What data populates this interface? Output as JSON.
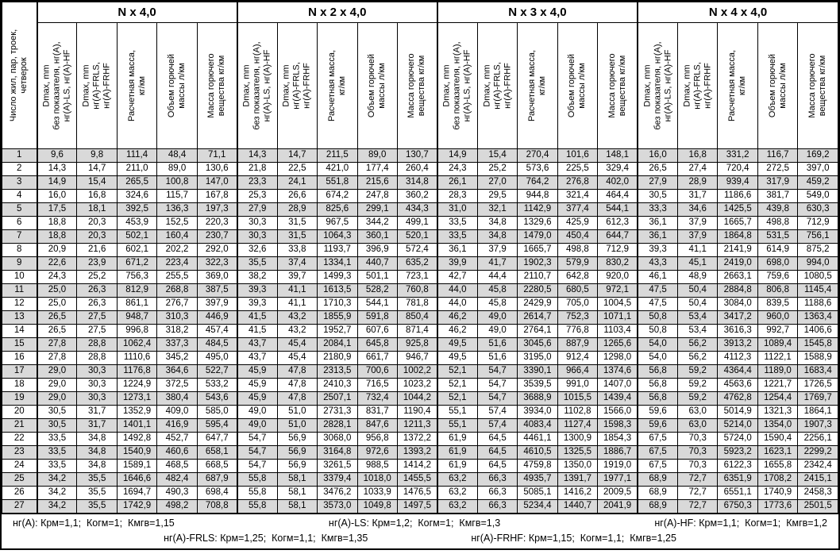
{
  "table": {
    "corner_header": "Число жил, пар, троек,\nчетверок",
    "groups": [
      {
        "title": "N x 4,0"
      },
      {
        "title": "N x 2 x 4,0"
      },
      {
        "title": "N x 3 x 4,0"
      },
      {
        "title": "N x 4 x 4,0"
      }
    ],
    "sub_headers": [
      "Dmax, mm\nбез показателя, нг(А),\nнг(А)-LS, нг(А)-HF",
      "Dmax, mm\nнг(А)-FRLS,\nнг(А)-FRHF",
      "Расчетная масса,\nкг/км",
      "Объем горючей\nмассы л/км",
      "Масса горючего\nвещества кг/км"
    ],
    "rows": [
      {
        "n": "1",
        "values": [
          "9,6",
          "9,8",
          "111,4",
          "48,4",
          "71,1",
          "14,3",
          "14,7",
          "211,5",
          "89,0",
          "130,7",
          "14,9",
          "15,4",
          "270,4",
          "101,6",
          "148,1",
          "16,0",
          "16,8",
          "331,2",
          "116,7",
          "169,2"
        ]
      },
      {
        "n": "2",
        "values": [
          "14,3",
          "14,7",
          "211,0",
          "89,0",
          "130,6",
          "21,8",
          "22,5",
          "421,0",
          "177,4",
          "260,4",
          "24,3",
          "25,2",
          "573,6",
          "225,5",
          "329,4",
          "26,5",
          "27,4",
          "720,4",
          "272,5",
          "397,0"
        ]
      },
      {
        "n": "3",
        "values": [
          "14,9",
          "15,4",
          "265,5",
          "100,8",
          "147,0",
          "23,3",
          "24,1",
          "551,8",
          "215,6",
          "314,8",
          "26,1",
          "27,0",
          "764,2",
          "276,8",
          "402,0",
          "27,9",
          "28,9",
          "939,4",
          "317,9",
          "459,2"
        ]
      },
      {
        "n": "4",
        "values": [
          "16,0",
          "16,8",
          "324,6",
          "115,7",
          "167,8",
          "25,3",
          "26,6",
          "674,2",
          "247,8",
          "360,2",
          "28,3",
          "29,5",
          "944,8",
          "321,4",
          "464,4",
          "30,5",
          "31,7",
          "1186,6",
          "381,7",
          "549,0"
        ]
      },
      {
        "n": "5",
        "values": [
          "17,5",
          "18,1",
          "392,5",
          "136,3",
          "197,3",
          "27,9",
          "28,9",
          "825,6",
          "299,1",
          "434,3",
          "31,0",
          "32,1",
          "1142,9",
          "377,4",
          "544,1",
          "33,3",
          "34,6",
          "1425,5",
          "439,8",
          "630,3"
        ]
      },
      {
        "n": "6",
        "values": [
          "18,8",
          "20,3",
          "453,9",
          "152,5",
          "220,3",
          "30,3",
          "31,5",
          "967,5",
          "344,2",
          "499,1",
          "33,5",
          "34,8",
          "1329,6",
          "425,9",
          "612,3",
          "36,1",
          "37,9",
          "1665,7",
          "498,8",
          "712,9"
        ]
      },
      {
        "n": "7",
        "values": [
          "18,8",
          "20,3",
          "502,1",
          "160,4",
          "230,7",
          "30,3",
          "31,5",
          "1064,3",
          "360,1",
          "520,1",
          "33,5",
          "34,8",
          "1479,0",
          "450,4",
          "644,7",
          "36,1",
          "37,9",
          "1864,8",
          "531,5",
          "756,1"
        ]
      },
      {
        "n": "8",
        "values": [
          "20,9",
          "21,6",
          "602,1",
          "202,2",
          "292,0",
          "32,6",
          "33,8",
          "1193,7",
          "396,9",
          "572,4",
          "36,1",
          "37,9",
          "1665,7",
          "498,8",
          "712,9",
          "39,3",
          "41,1",
          "2141,9",
          "614,9",
          "875,2"
        ]
      },
      {
        "n": "9",
        "values": [
          "22,6",
          "23,9",
          "671,2",
          "223,4",
          "322,3",
          "35,5",
          "37,4",
          "1334,1",
          "440,7",
          "635,2",
          "39,9",
          "41,7",
          "1902,3",
          "579,9",
          "830,2",
          "43,3",
          "45,1",
          "2419,0",
          "698,0",
          "994,0"
        ]
      },
      {
        "n": "10",
        "values": [
          "24,3",
          "25,2",
          "756,3",
          "255,5",
          "369,0",
          "38,2",
          "39,7",
          "1499,3",
          "501,1",
          "723,1",
          "42,7",
          "44,4",
          "2110,7",
          "642,8",
          "920,0",
          "46,1",
          "48,9",
          "2663,1",
          "759,6",
          "1080,5"
        ]
      },
      {
        "n": "11",
        "values": [
          "25,0",
          "26,3",
          "812,9",
          "268,8",
          "387,5",
          "39,3",
          "41,1",
          "1613,5",
          "528,2",
          "760,8",
          "44,0",
          "45,8",
          "2280,5",
          "680,5",
          "972,1",
          "47,5",
          "50,4",
          "2884,8",
          "806,8",
          "1145,4"
        ]
      },
      {
        "n": "12",
        "values": [
          "25,0",
          "26,3",
          "861,1",
          "276,7",
          "397,9",
          "39,3",
          "41,1",
          "1710,3",
          "544,1",
          "781,8",
          "44,0",
          "45,8",
          "2429,9",
          "705,0",
          "1004,5",
          "47,5",
          "50,4",
          "3084,0",
          "839,5",
          "1188,6"
        ]
      },
      {
        "n": "13",
        "values": [
          "26,5",
          "27,5",
          "948,7",
          "310,3",
          "446,9",
          "41,5",
          "43,2",
          "1855,9",
          "591,8",
          "850,4",
          "46,2",
          "49,0",
          "2614,7",
          "752,3",
          "1071,1",
          "50,8",
          "53,4",
          "3417,2",
          "960,0",
          "1363,4"
        ]
      },
      {
        "n": "14",
        "values": [
          "26,5",
          "27,5",
          "996,8",
          "318,2",
          "457,4",
          "41,5",
          "43,2",
          "1952,7",
          "607,6",
          "871,4",
          "46,2",
          "49,0",
          "2764,1",
          "776,8",
          "1103,4",
          "50,8",
          "53,4",
          "3616,3",
          "992,7",
          "1406,6"
        ]
      },
      {
        "n": "15",
        "values": [
          "27,8",
          "28,8",
          "1062,4",
          "337,3",
          "484,5",
          "43,7",
          "45,4",
          "2084,1",
          "645,8",
          "925,8",
          "49,5",
          "51,6",
          "3045,6",
          "887,9",
          "1265,6",
          "54,0",
          "56,2",
          "3913,2",
          "1089,4",
          "1545,8"
        ]
      },
      {
        "n": "16",
        "values": [
          "27,8",
          "28,8",
          "1110,6",
          "345,2",
          "495,0",
          "43,7",
          "45,4",
          "2180,9",
          "661,7",
          "946,7",
          "49,5",
          "51,6",
          "3195,0",
          "912,4",
          "1298,0",
          "54,0",
          "56,2",
          "4112,3",
          "1122,1",
          "1588,9"
        ]
      },
      {
        "n": "17",
        "values": [
          "29,0",
          "30,3",
          "1176,8",
          "364,6",
          "522,7",
          "45,9",
          "47,8",
          "2313,5",
          "700,6",
          "1002,2",
          "52,1",
          "54,7",
          "3390,1",
          "966,4",
          "1374,6",
          "56,8",
          "59,2",
          "4364,4",
          "1189,0",
          "1683,4"
        ]
      },
      {
        "n": "18",
        "values": [
          "29,0",
          "30,3",
          "1224,9",
          "372,5",
          "533,2",
          "45,9",
          "47,8",
          "2410,3",
          "716,5",
          "1023,2",
          "52,1",
          "54,7",
          "3539,5",
          "991,0",
          "1407,0",
          "56,8",
          "59,2",
          "4563,6",
          "1221,7",
          "1726,5"
        ]
      },
      {
        "n": "19",
        "values": [
          "29,0",
          "30,3",
          "1273,1",
          "380,4",
          "543,6",
          "45,9",
          "47,8",
          "2507,1",
          "732,4",
          "1044,2",
          "52,1",
          "54,7",
          "3688,9",
          "1015,5",
          "1439,4",
          "56,8",
          "59,2",
          "4762,8",
          "1254,4",
          "1769,7"
        ]
      },
      {
        "n": "20",
        "values": [
          "30,5",
          "31,7",
          "1352,9",
          "409,0",
          "585,0",
          "49,0",
          "51,0",
          "2731,3",
          "831,7",
          "1190,4",
          "55,1",
          "57,4",
          "3934,0",
          "1102,8",
          "1566,0",
          "59,6",
          "63,0",
          "5014,9",
          "1321,3",
          "1864,1"
        ]
      },
      {
        "n": "21",
        "values": [
          "30,5",
          "31,7",
          "1401,1",
          "416,9",
          "595,4",
          "49,0",
          "51,0",
          "2828,1",
          "847,6",
          "1211,3",
          "55,1",
          "57,4",
          "4083,4",
          "1127,4",
          "1598,3",
          "59,6",
          "63,0",
          "5214,0",
          "1354,0",
          "1907,3"
        ]
      },
      {
        "n": "22",
        "values": [
          "33,5",
          "34,8",
          "1492,8",
          "452,7",
          "647,7",
          "54,7",
          "56,9",
          "3068,0",
          "956,8",
          "1372,2",
          "61,9",
          "64,5",
          "4461,1",
          "1300,9",
          "1854,3",
          "67,5",
          "70,3",
          "5724,0",
          "1590,4",
          "2256,1"
        ]
      },
      {
        "n": "23",
        "values": [
          "33,5",
          "34,8",
          "1540,9",
          "460,6",
          "658,1",
          "54,7",
          "56,9",
          "3164,8",
          "972,6",
          "1393,2",
          "61,9",
          "64,5",
          "4610,5",
          "1325,5",
          "1886,7",
          "67,5",
          "70,3",
          "5923,2",
          "1623,1",
          "2299,2"
        ]
      },
      {
        "n": "24",
        "values": [
          "33,5",
          "34,8",
          "1589,1",
          "468,5",
          "668,5",
          "54,7",
          "56,9",
          "3261,5",
          "988,5",
          "1414,2",
          "61,9",
          "64,5",
          "4759,8",
          "1350,0",
          "1919,0",
          "67,5",
          "70,3",
          "6122,3",
          "1655,8",
          "2342,4"
        ]
      },
      {
        "n": "25",
        "values": [
          "34,2",
          "35,5",
          "1646,6",
          "482,4",
          "687,9",
          "55,8",
          "58,1",
          "3379,4",
          "1018,0",
          "1455,5",
          "63,2",
          "66,3",
          "4935,7",
          "1391,7",
          "1977,1",
          "68,9",
          "72,7",
          "6351,9",
          "1708,2",
          "2415,1"
        ]
      },
      {
        "n": "26",
        "values": [
          "34,2",
          "35,5",
          "1694,7",
          "490,3",
          "698,4",
          "55,8",
          "58,1",
          "3476,2",
          "1033,9",
          "1476,5",
          "63,2",
          "66,3",
          "5085,1",
          "1416,2",
          "2009,5",
          "68,9",
          "72,7",
          "6551,1",
          "1740,9",
          "2458,3"
        ]
      },
      {
        "n": "27",
        "values": [
          "34,2",
          "35,5",
          "1742,9",
          "498,2",
          "708,8",
          "55,8",
          "58,1",
          "3573,0",
          "1049,8",
          "1497,5",
          "63,2",
          "66,3",
          "5234,4",
          "1440,7",
          "2041,9",
          "68,9",
          "72,7",
          "6750,3",
          "1773,6",
          "2501,5"
        ]
      }
    ]
  },
  "footnotes": {
    "line1": [
      "нг(А): Крм=1,1;  Когм=1;  Кмгв=1,15",
      "нг(А)-LS: Крм=1,2;  Когм=1;  Кмгв=1,3",
      "нг(А)-HF: Крм=1,1;  Когм=1;  Кмгв=1,2"
    ],
    "line2": [
      "нг(А)-FRLS: Крм=1,25;  Когм=1,1;  Кмгв=1,35",
      "нг(А)-FRHF: Крм=1,15;  Когм=1,1;  Кмгв=1,25"
    ]
  },
  "colors": {
    "row_shade": "#d9d9d9",
    "border": "#000000",
    "background": "#ffffff"
  }
}
